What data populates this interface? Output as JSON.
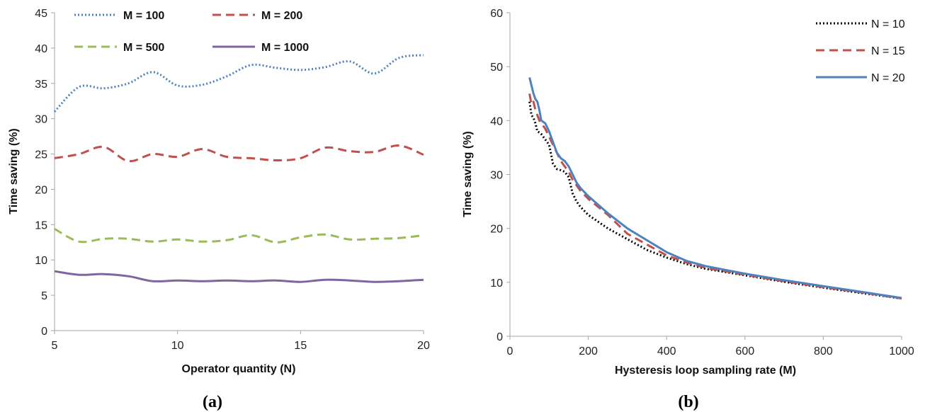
{
  "chart_data": [
    {
      "type": "line",
      "panel_label": "(a)",
      "xlabel": "Operator quantity (N)",
      "ylabel": "Time saving (%)",
      "xlim": [
        5,
        20
      ],
      "ylim": [
        0,
        45
      ],
      "xticks": [
        5,
        10,
        15,
        20
      ],
      "yticks": [
        0,
        5,
        10,
        15,
        20,
        25,
        30,
        35,
        40,
        45
      ],
      "grid": false,
      "legend": "top",
      "x": [
        5,
        6,
        7,
        8,
        9,
        10,
        11,
        12,
        13,
        14,
        15,
        16,
        17,
        18,
        19,
        20
      ],
      "series": [
        {
          "name": "M = 100",
          "color": "#4f81bd",
          "style": "dotted",
          "values": [
            31.0,
            34.5,
            34.3,
            35.0,
            36.6,
            34.7,
            34.8,
            36.0,
            37.6,
            37.2,
            36.9,
            37.3,
            38.1,
            36.4,
            38.6,
            39.0
          ]
        },
        {
          "name": "M = 200",
          "color": "#c0504d",
          "style": "dashed",
          "values": [
            24.4,
            25.0,
            26.0,
            24.0,
            25.0,
            24.6,
            25.7,
            24.6,
            24.4,
            24.1,
            24.4,
            25.9,
            25.4,
            25.3,
            26.2,
            24.9
          ]
        },
        {
          "name": "M = 500",
          "color": "#9bbb59",
          "style": "dashed",
          "values": [
            14.4,
            12.6,
            13.0,
            13.0,
            12.6,
            12.9,
            12.6,
            12.8,
            13.5,
            12.5,
            13.2,
            13.6,
            12.9,
            13.0,
            13.1,
            13.5
          ]
        },
        {
          "name": "M = 1000",
          "color": "#8064a2",
          "style": "solid",
          "values": [
            8.4,
            7.9,
            8.0,
            7.7,
            7.0,
            7.1,
            7.0,
            7.1,
            7.0,
            7.1,
            6.9,
            7.2,
            7.1,
            6.9,
            7.0,
            7.2
          ]
        }
      ]
    },
    {
      "type": "line",
      "panel_label": "(b)",
      "xlabel": "Hysteresis loop sampling rate (M)",
      "ylabel": "Time saving (%)",
      "xlim": [
        0,
        1000
      ],
      "ylim": [
        0,
        60
      ],
      "xticks": [
        0,
        200,
        400,
        600,
        800,
        1000
      ],
      "yticks": [
        0,
        10,
        20,
        30,
        40,
        50,
        60
      ],
      "grid": false,
      "legend": "top-right",
      "x": [
        50,
        55,
        60,
        65,
        70,
        75,
        80,
        90,
        100,
        110,
        120,
        130,
        140,
        150,
        160,
        170,
        180,
        200,
        250,
        300,
        350,
        400,
        450,
        500,
        600,
        700,
        800,
        900,
        1000
      ],
      "series": [
        {
          "name": "N = 10",
          "color": "#000000",
          "style": "dotted",
          "values": [
            43.5,
            41.0,
            40.5,
            39.5,
            38.0,
            37.8,
            37.5,
            36.5,
            35.5,
            32.0,
            31.0,
            30.8,
            30.5,
            29.5,
            26.5,
            25.0,
            24.0,
            22.5,
            20.0,
            18.0,
            16.0,
            14.6,
            13.4,
            12.5,
            11.3,
            10.1,
            9.0,
            8.0,
            7.0
          ]
        },
        {
          "name": "N = 15",
          "color": "#c0504d",
          "style": "dashed",
          "values": [
            45.0,
            43.0,
            43.5,
            42.0,
            41.0,
            40.0,
            39.5,
            38.5,
            37.0,
            35.5,
            34.0,
            32.5,
            31.5,
            30.5,
            29.0,
            28.0,
            27.0,
            25.5,
            22.5,
            19.0,
            17.0,
            15.0,
            13.7,
            12.7,
            11.4,
            10.2,
            9.1,
            8.1,
            7.0
          ]
        },
        {
          "name": "N = 20",
          "color": "#4f81bd",
          "style": "solid",
          "values": [
            48.0,
            46.5,
            45.0,
            44.0,
            43.5,
            42.0,
            40.0,
            39.5,
            38.0,
            36.0,
            34.0,
            33.0,
            32.5,
            31.5,
            30.0,
            28.5,
            27.5,
            26.0,
            22.8,
            20.0,
            17.8,
            15.6,
            14.0,
            13.0,
            11.6,
            10.4,
            9.3,
            8.2,
            7.1
          ]
        }
      ]
    }
  ]
}
